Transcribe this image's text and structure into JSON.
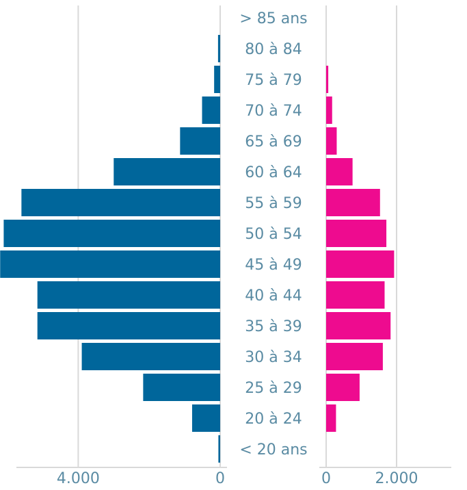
{
  "chart_data": {
    "type": "bar",
    "orientation": "horizontal",
    "layout": "population-pyramid",
    "categories": [
      "> 85 ans",
      "80 à 84",
      "75 à 79",
      "70 à 74",
      "65 à 69",
      "60 à 64",
      "55 à 59",
      "50 à 54",
      "45 à 49",
      "40 à 44",
      "35 à 39",
      "30 à 34",
      "25 à 29",
      "20 à 24",
      "< 20 ans"
    ],
    "series": [
      {
        "side": "left",
        "color": "#00669b",
        "values": [
          0,
          60,
          170,
          510,
          1130,
          3000,
          5600,
          6100,
          6200,
          5150,
          5150,
          3900,
          2170,
          790,
          50
        ]
      },
      {
        "side": "right",
        "color": "#ee0b8f",
        "values": [
          0,
          0,
          60,
          170,
          300,
          750,
          1530,
          1710,
          1930,
          1660,
          1830,
          1610,
          950,
          280,
          0
        ]
      }
    ],
    "left_axis": {
      "ticks": [
        4000,
        0
      ],
      "tick_labels": [
        "4.000",
        "0"
      ],
      "xlim": [
        6300,
        0
      ]
    },
    "right_axis": {
      "ticks": [
        0,
        2000
      ],
      "tick_labels": [
        "0",
        "2.000"
      ],
      "xlim": [
        0,
        4000
      ]
    },
    "grid": true,
    "colors": {
      "grid": "#d9d9d9",
      "text": "#5a8ba3"
    }
  }
}
